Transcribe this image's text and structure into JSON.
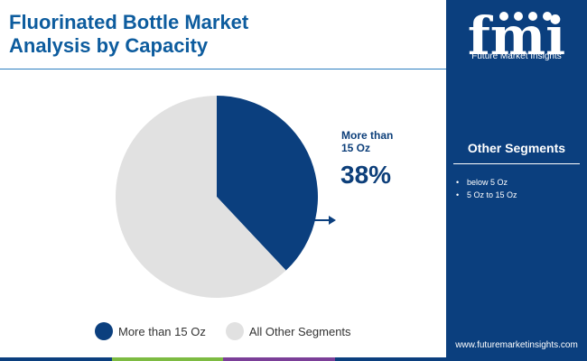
{
  "header": {
    "title_line1": "Fluorinated Bottle Market",
    "title_line2": "Analysis by Capacity"
  },
  "brand": {
    "logo_letters": "fmi",
    "name": "Future Market Insights",
    "website": "www.futuremarketinsights.com"
  },
  "sidebar": {
    "heading": "Other Segments",
    "items": [
      "below 5 Oz",
      "5 Oz to 15 Oz"
    ]
  },
  "callout": {
    "label_line1": "More than",
    "label_line2": "15 Oz",
    "value": "38%"
  },
  "colors": {
    "primary": "#0b3f7e",
    "other": "#e1e1e1",
    "title": "#0d5c9e",
    "bar": [
      "#0b3f7e",
      "#7dbb42",
      "#7b3f98",
      "#0b3f7e"
    ]
  },
  "chart_data": {
    "type": "pie",
    "slices": [
      {
        "label": "More than 15 Oz",
        "value": 38,
        "color": "#0b3f7e"
      },
      {
        "label": "All Other Segments",
        "value": 62,
        "color": "#e1e1e1"
      }
    ],
    "title": "Fluorinated Bottle Market Analysis by Capacity",
    "legend_position": "bottom"
  }
}
